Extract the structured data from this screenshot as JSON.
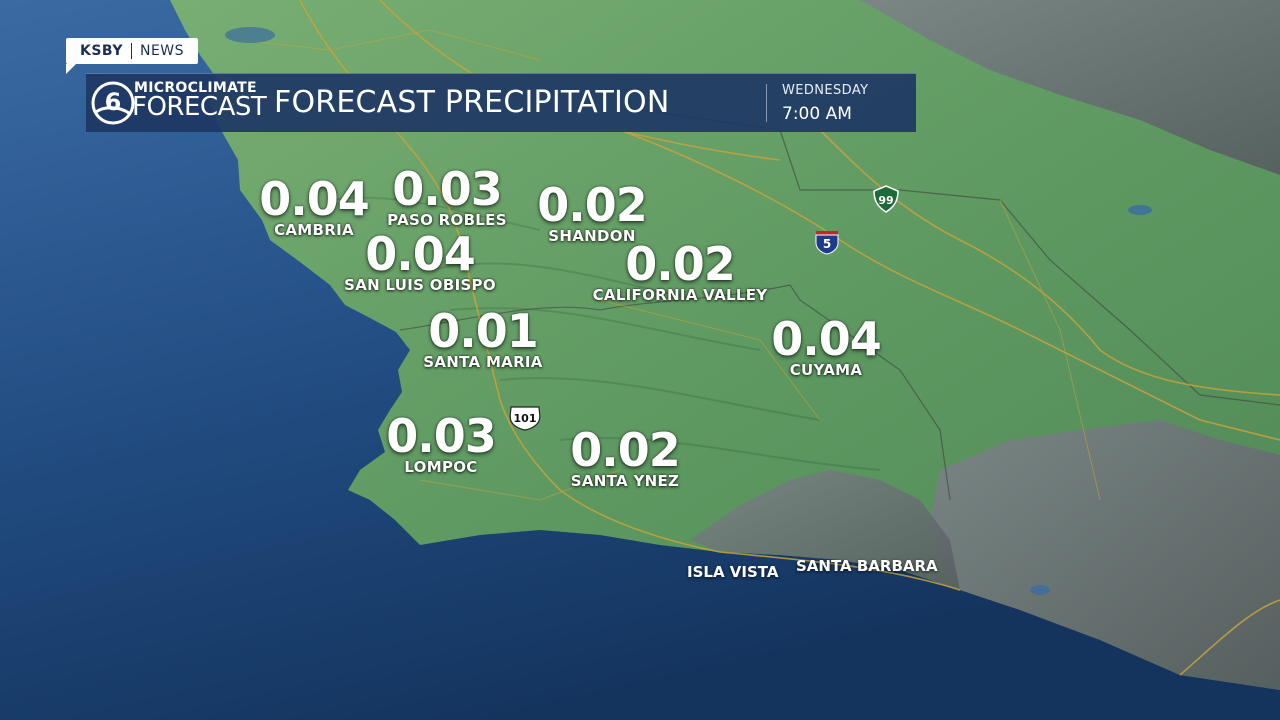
{
  "badge": {
    "station": "KSBY",
    "section": "NEWS"
  },
  "header": {
    "logo_top": "MICROCLIMATE",
    "logo_bottom": "FORECAST",
    "logo_number": "6",
    "title": "FORECAST PRECIPITATION",
    "day": "WEDNESDAY",
    "time": "7:00 AM"
  },
  "cities": [
    {
      "name": "CAMBRIA",
      "value": "0.04"
    },
    {
      "name": "PASO ROBLES",
      "value": "0.03"
    },
    {
      "name": "SHANDON",
      "value": "0.02"
    },
    {
      "name": "SAN LUIS OBISPO",
      "value": "0.04"
    },
    {
      "name": "CALIFORNIA VALLEY",
      "value": "0.02"
    },
    {
      "name": "SANTA MARIA",
      "value": "0.01"
    },
    {
      "name": "CUYAMA",
      "value": "0.04"
    },
    {
      "name": "LOMPOC",
      "value": "0.03"
    },
    {
      "name": "SANTA YNEZ",
      "value": "0.02"
    }
  ],
  "places": [
    {
      "name": "ISLA VISTA"
    },
    {
      "name": "SANTA BARBARA"
    }
  ],
  "highways": [
    {
      "label": "99",
      "type": "state-route-icon"
    },
    {
      "label": "5",
      "type": "interstate-icon"
    },
    {
      "label": "101",
      "type": "us-route-icon"
    }
  ],
  "colors": {
    "ocean": "#1f4a7c",
    "land_precip": "#5e9a62",
    "land_dry": "#6c7276",
    "header_bg": "#1e3764",
    "roads": "#c9a23a"
  }
}
